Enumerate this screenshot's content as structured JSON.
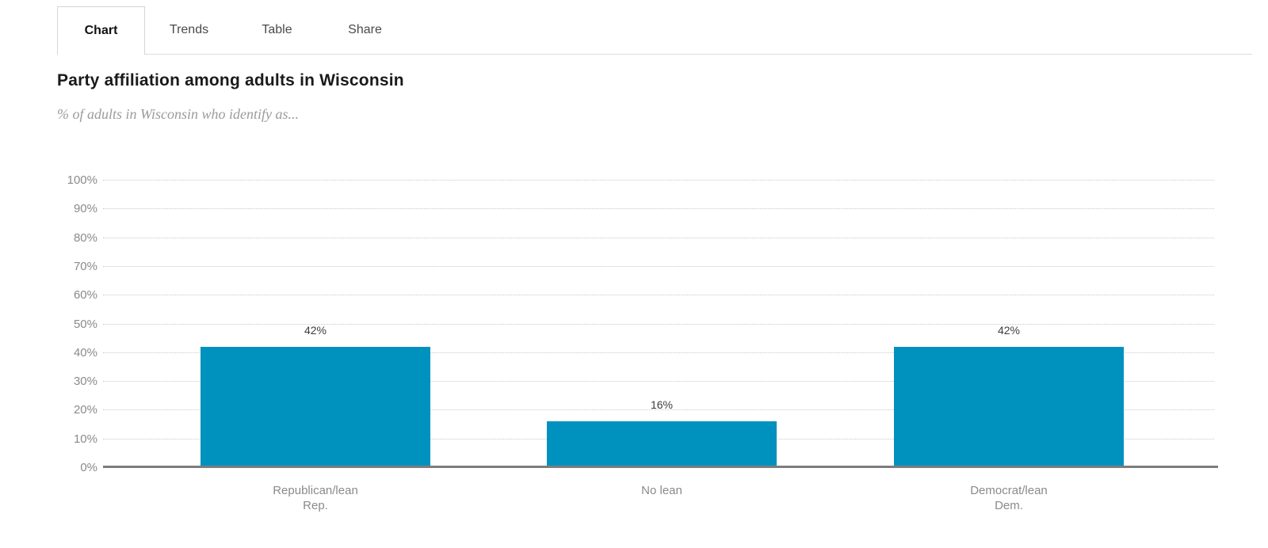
{
  "tabs": [
    {
      "label": "Chart",
      "active": true
    },
    {
      "label": "Trends",
      "active": false
    },
    {
      "label": "Table",
      "active": false
    },
    {
      "label": "Share",
      "active": false
    }
  ],
  "header": {
    "title": "Party affiliation among adults in Wisconsin",
    "subtitle": "% of adults in Wisconsin who identify as..."
  },
  "chart_data": {
    "type": "bar",
    "title": "Party affiliation among adults in Wisconsin",
    "subtitle": "% of adults in Wisconsin who identify as...",
    "categories": [
      "Republican/lean\nRep.",
      "No lean",
      "Democrat/lean\nDem."
    ],
    "values": [
      42,
      16,
      42
    ],
    "value_labels": [
      "42%",
      "16%",
      "42%"
    ],
    "ytick_values": [
      0,
      10,
      20,
      30,
      40,
      50,
      60,
      70,
      80,
      90,
      100
    ],
    "ytick_labels": [
      "0%",
      "10%",
      "20%",
      "30%",
      "40%",
      "50%",
      "60%",
      "70%",
      "80%",
      "90%",
      "100%"
    ],
    "ylim": [
      0,
      100
    ],
    "xlabel": "",
    "ylabel": "",
    "grid": "horizontal-dotted",
    "legend": "none",
    "bar_color": "#0092be",
    "axis_color": "#7d7d7d"
  }
}
